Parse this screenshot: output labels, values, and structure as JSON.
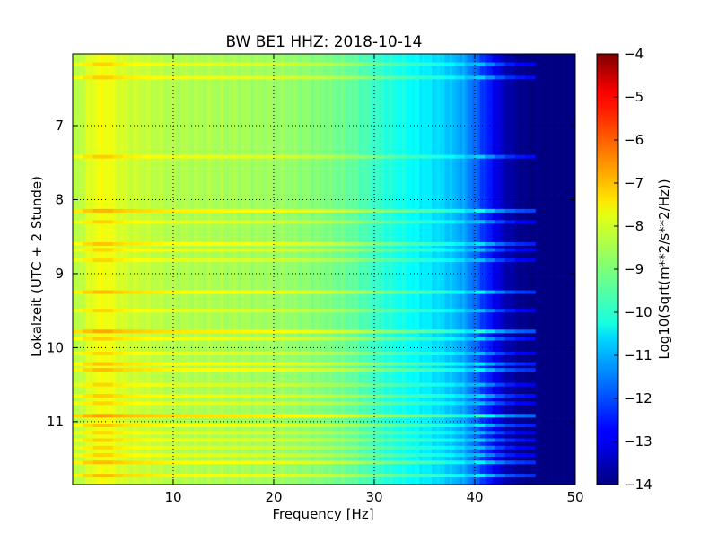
{
  "chart_data": {
    "type": "heatmap",
    "title": "BW BE1 HHZ: 2018-10-14",
    "xlabel": "Frequency [Hz]",
    "ylabel": "Lokalzeit (UTC + 2 Stunde)",
    "xlim": [
      0,
      50
    ],
    "ylim": [
      11.85,
      6.03
    ],
    "x_ticks": [
      10,
      20,
      30,
      40,
      50
    ],
    "y_ticks": [
      7,
      8,
      9,
      10,
      11
    ],
    "grid": true,
    "colorbar": {
      "label": "Log10(Sqrt(m**2/s**2/Hz))",
      "range": [
        -14,
        -4
      ],
      "ticks": [
        -4,
        -5,
        -6,
        -7,
        -8,
        -9,
        -10,
        -11,
        -12,
        -13,
        -14
      ],
      "colormap": "jet"
    },
    "spectrum_profile": {
      "frequency_hz": [
        0,
        2,
        3,
        5,
        10,
        15,
        20,
        25,
        28,
        30,
        32,
        35,
        37,
        39,
        40,
        41,
        42,
        43,
        45,
        48,
        50
      ],
      "log_amplitude": [
        -8.6,
        -8.0,
        -7.8,
        -8.2,
        -8.5,
        -8.6,
        -8.7,
        -9.0,
        -9.3,
        -9.7,
        -10.0,
        -10.4,
        -10.7,
        -11.2,
        -11.7,
        -12.3,
        -12.9,
        -13.5,
        -14.0,
        -14.0,
        -14.0
      ]
    },
    "bright_bands": [
      {
        "time": 6.17,
        "strength": 0.6
      },
      {
        "time": 6.35,
        "strength": 0.7
      },
      {
        "time": 7.42,
        "strength": 0.7
      },
      {
        "time": 8.15,
        "strength": 1.0
      },
      {
        "time": 8.3,
        "strength": 0.6
      },
      {
        "time": 8.6,
        "strength": 0.8
      },
      {
        "time": 8.68,
        "strength": 0.6
      },
      {
        "time": 8.82,
        "strength": 0.6
      },
      {
        "time": 9.25,
        "strength": 0.9
      },
      {
        "time": 9.5,
        "strength": 0.6
      },
      {
        "time": 9.78,
        "strength": 1.1
      },
      {
        "time": 9.88,
        "strength": 0.7
      },
      {
        "time": 10.08,
        "strength": 0.6
      },
      {
        "time": 10.22,
        "strength": 0.8
      },
      {
        "time": 10.3,
        "strength": 0.9
      },
      {
        "time": 10.5,
        "strength": 0.6
      },
      {
        "time": 10.65,
        "strength": 0.7
      },
      {
        "time": 10.75,
        "strength": 0.6
      },
      {
        "time": 10.92,
        "strength": 1.2
      },
      {
        "time": 11.05,
        "strength": 0.8
      },
      {
        "time": 11.15,
        "strength": 0.6
      },
      {
        "time": 11.25,
        "strength": 0.7
      },
      {
        "time": 11.35,
        "strength": 0.6
      },
      {
        "time": 11.45,
        "strength": 0.6
      },
      {
        "time": 11.55,
        "strength": 0.9
      },
      {
        "time": 11.73,
        "strength": 0.9
      }
    ]
  }
}
